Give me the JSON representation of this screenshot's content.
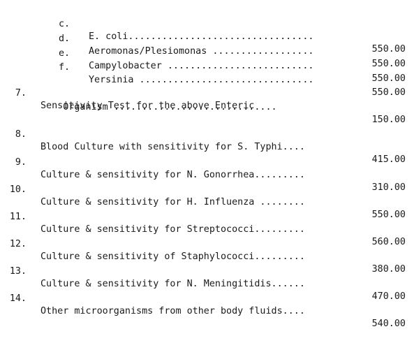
{
  "subitems": [
    {
      "letter": "c.",
      "desc": "E. coli.................................",
      "amount": "550.00"
    },
    {
      "letter": "d.",
      "desc": "Aeromonas/Plesiomonas ..................",
      "amount": "550.00"
    },
    {
      "letter": "e.",
      "desc": "Campylobacter ..........................",
      "amount": "550.00"
    },
    {
      "letter": "f.",
      "desc": "Yersinia ...............................",
      "amount": "550.00"
    }
  ],
  "items": [
    {
      "num": "7.",
      "desc": "Sensitivity Test for the above Enteric",
      "desc2": "    Organism .............................",
      "amount": "150.00"
    },
    {
      "num": "8.",
      "desc": "Blood Culture with sensitivity for S. Typhi....",
      "amount": "415.00"
    },
    {
      "num": "9.",
      "desc": "Culture & sensitivity for N. Gonorrhea.........",
      "amount": "310.00"
    },
    {
      "num": "10.",
      "desc": "Culture & sensitivity for H. Influenza ........",
      "amount": "550.00"
    },
    {
      "num": "11.",
      "desc": "Culture & sensitivity for Streptococci.........",
      "amount": "560.00"
    },
    {
      "num": "12.",
      "desc": "Culture & sensitivity of Staphylococci.........",
      "amount": "380.00"
    },
    {
      "num": "13.",
      "desc": "Culture & sensitivity for N. Meningitidis......",
      "amount": "470.00"
    },
    {
      "num": "14.",
      "desc": "Other microorganisms from other body fluids....",
      "amount": "540.00"
    }
  ]
}
